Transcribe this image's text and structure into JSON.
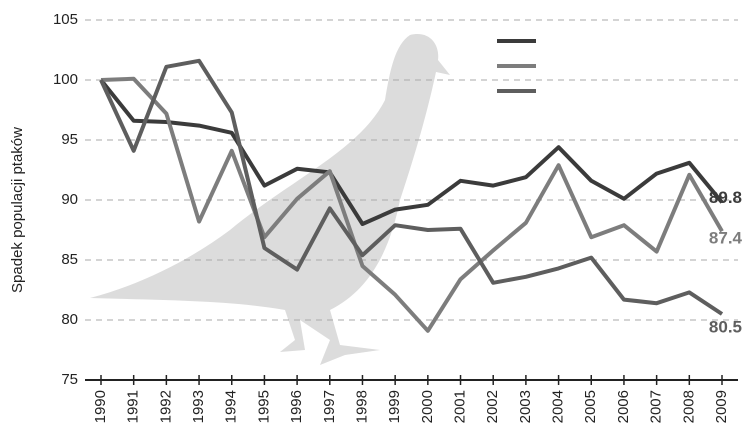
{
  "chart_data": {
    "type": "line",
    "y_label": "Spadek populacji ptaków",
    "x": [
      "1990",
      "1991",
      "1992",
      "1993",
      "1994",
      "1995",
      "1996",
      "1997",
      "1998",
      "1999",
      "2000",
      "2001",
      "2002",
      "2003",
      "2004",
      "2005",
      "2006",
      "2007",
      "2008",
      "2009"
    ],
    "series": [
      {
        "color": "#3b3b3b",
        "values": [
          100,
          96.6,
          96.5,
          96.2,
          95.6,
          91.2,
          92.6,
          92.3,
          88.0,
          89.2,
          89.6,
          91.6,
          91.2,
          91.9,
          94.4,
          91.6,
          90.1,
          92.2,
          93.1,
          89.8
        ]
      },
      {
        "color": "#7d7d7d",
        "values": [
          100,
          100.1,
          97.2,
          88.2,
          94.1,
          86.9,
          90.1,
          92.4,
          84.5,
          82.1,
          79.1,
          83.4,
          85.8,
          88.1,
          92.9,
          86.9,
          87.9,
          85.7,
          92.1,
          87.4
        ]
      },
      {
        "color": "#5e5e5e",
        "values": [
          100,
          94.1,
          101.1,
          101.6,
          97.3,
          86.0,
          84.2,
          89.3,
          85.4,
          87.9,
          87.5,
          87.6,
          83.1,
          83.6,
          84.3,
          85.2,
          81.7,
          81.4,
          82.3,
          80.5
        ]
      }
    ],
    "ylim": [
      75,
      105
    ],
    "yticks": [
      75,
      80,
      85,
      90,
      95,
      100,
      105
    ],
    "grid": true
  }
}
